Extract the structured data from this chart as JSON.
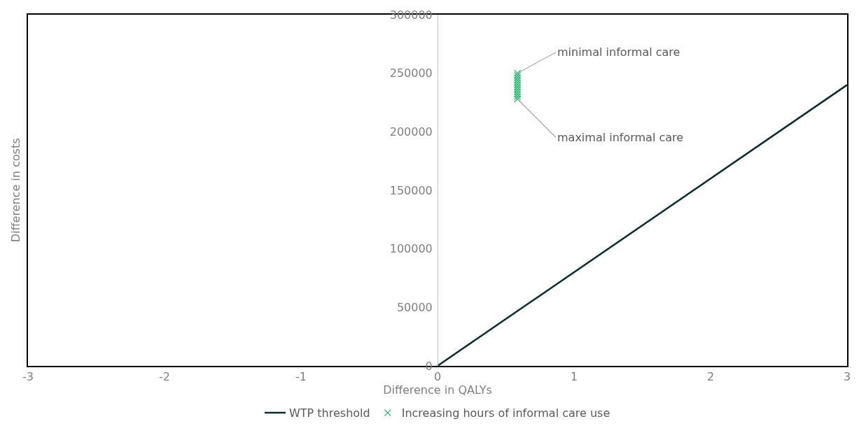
{
  "chart_data": {
    "type": "scatter",
    "xlabel": "Difference in QALYs",
    "ylabel": "Difference in costs",
    "xlim": [
      -3,
      3
    ],
    "xticks": [
      -3,
      -2,
      -1,
      0,
      1,
      2,
      3
    ],
    "ylim": [
      0,
      300000
    ],
    "yticks": [
      0,
      50000,
      100000,
      150000,
      200000,
      250000,
      300000
    ],
    "legend": "bottom",
    "series": [
      {
        "name": "WTP threshold",
        "type": "line",
        "color": "#0d2b2b",
        "marker": "none",
        "line_style": "solid",
        "x": [
          0,
          3
        ],
        "values": [
          0,
          240000
        ]
      },
      {
        "name": "Increasing hours of informal care use",
        "color": "#1fb571",
        "marker": "cross",
        "x": [
          0.585,
          0.585,
          0.585,
          0.585,
          0.585,
          0.585,
          0.585,
          0.585,
          0.585,
          0.585,
          0.585,
          0.585
        ],
        "values": [
          250000,
          248000,
          246000,
          244000,
          242000,
          240000,
          238000,
          236000,
          234000,
          232000,
          230000,
          228000
        ]
      }
    ],
    "annotations": [
      {
        "text": "minimal informal care",
        "x": 0.585,
        "y": 250000
      },
      {
        "text": "maximal informal care",
        "x": 0.585,
        "y": 228000
      }
    ]
  }
}
